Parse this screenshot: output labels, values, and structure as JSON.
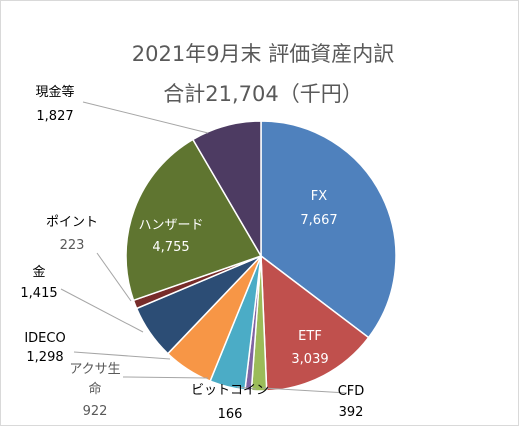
{
  "chart_data": {
    "type": "pie",
    "title": "2021年9月末  評価資産内訳",
    "subtitle": "合計21,704（千円）",
    "unit": "千円",
    "total": 21704,
    "start": "12 o'clock, clockwise",
    "slices": [
      {
        "name": "FX",
        "value": 7667,
        "value_label": "7,667",
        "color": "#4f81bd"
      },
      {
        "name": "ETF",
        "value": 3039,
        "value_label": "3,039",
        "color": "#c0504d"
      },
      {
        "name": "CFD",
        "value": 392,
        "value_label": "392",
        "color": "#9bbb59"
      },
      {
        "name": "ビットコイン",
        "value": 166,
        "value_label": "166",
        "color": "#8064a2"
      },
      {
        "name": "アクサ生命",
        "value": 922,
        "value_label": "922",
        "color": "#4bacc6"
      },
      {
        "name": "IDECO",
        "value": 1298,
        "value_label": "1,298",
        "color": "#f79646"
      },
      {
        "name": "金",
        "value": 1415,
        "value_label": "1,415",
        "color": "#2c4d75"
      },
      {
        "name": "ポイント",
        "value": 223,
        "value_label": "223",
        "color": "#772c2a"
      },
      {
        "name": "ハンザード",
        "value": 4755,
        "value_label": "4,755",
        "color": "#5f7530"
      },
      {
        "name": "現金等",
        "value": 1827,
        "value_label": "1,827",
        "color": "#4d3b62"
      }
    ]
  }
}
